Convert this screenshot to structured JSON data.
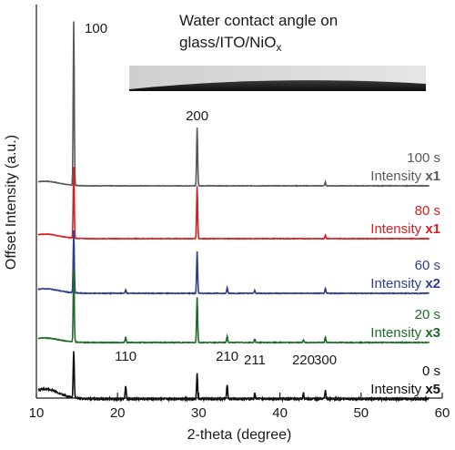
{
  "chart_data": {
    "type": "line",
    "xlabel": "2-theta (degree)",
    "ylabel": "Offset Intensity (a.u.)",
    "xlim": [
      10,
      60
    ],
    "x_ticks": [
      "10",
      "20",
      "30",
      "40",
      "50",
      "60"
    ],
    "grid": false,
    "inset": {
      "title_line1": "Water contact angle on",
      "title_line2_main": "glass/ITO/NiO",
      "title_line2_sub": "x"
    },
    "series": [
      {
        "name": "100 s",
        "multiplier_prefix": "Intensity ",
        "multiplier": "x1",
        "color": "#595959",
        "baseline": 0.0,
        "noise": 0.015,
        "peaks": [
          [
            14.6,
            9.0
          ],
          [
            29.8,
            3.2
          ],
          [
            45.6,
            0.2
          ]
        ]
      },
      {
        "name": "80 s",
        "multiplier_prefix": "Intensity ",
        "multiplier": "x1",
        "color": "#d62020",
        "baseline": -2.9,
        "noise": 0.015,
        "peaks": [
          [
            14.6,
            3.9
          ],
          [
            29.8,
            2.9
          ],
          [
            45.6,
            0.2
          ]
        ]
      },
      {
        "name": "60 s",
        "multiplier_prefix": "Intensity ",
        "multiplier": "x2",
        "color": "#2f3e8f",
        "baseline": -5.9,
        "noise": 0.02,
        "peaks": [
          [
            14.6,
            3.4
          ],
          [
            21.0,
            0.2
          ],
          [
            29.8,
            2.3
          ],
          [
            33.5,
            0.3
          ],
          [
            36.9,
            0.15
          ],
          [
            45.6,
            0.25
          ]
        ]
      },
      {
        "name": "20 s",
        "multiplier_prefix": "Intensity ",
        "multiplier": "x3",
        "color": "#1e6b2a",
        "baseline": -8.6,
        "noise": 0.02,
        "peaks": [
          [
            14.6,
            4.0
          ],
          [
            21.0,
            0.3
          ],
          [
            29.8,
            2.5
          ],
          [
            33.5,
            0.35
          ],
          [
            36.9,
            0.2
          ],
          [
            42.9,
            0.15
          ],
          [
            45.6,
            0.3
          ]
        ]
      },
      {
        "name": "0 s",
        "multiplier_prefix": "Intensity ",
        "multiplier": "x5",
        "color": "#111111",
        "baseline": -11.7,
        "noise": 0.05,
        "peaks": [
          [
            14.6,
            2.6
          ],
          [
            21.0,
            0.7
          ],
          [
            29.8,
            1.4
          ],
          [
            33.5,
            0.8
          ],
          [
            36.9,
            0.35
          ],
          [
            42.9,
            0.35
          ],
          [
            45.6,
            0.45
          ]
        ]
      }
    ],
    "peak_labels": [
      {
        "text": "100",
        "x": 14.6,
        "series": 0
      },
      {
        "text": "200",
        "x": 29.8,
        "series": 0
      },
      {
        "text": "110",
        "x": 21.0,
        "series": 4
      },
      {
        "text": "210",
        "x": 33.5,
        "series": 4
      },
      {
        "text": "211",
        "x": 36.9,
        "series": 4
      },
      {
        "text": "220",
        "x": 42.9,
        "series": 4
      },
      {
        "text": "300",
        "x": 45.6,
        "series": 4
      }
    ]
  }
}
